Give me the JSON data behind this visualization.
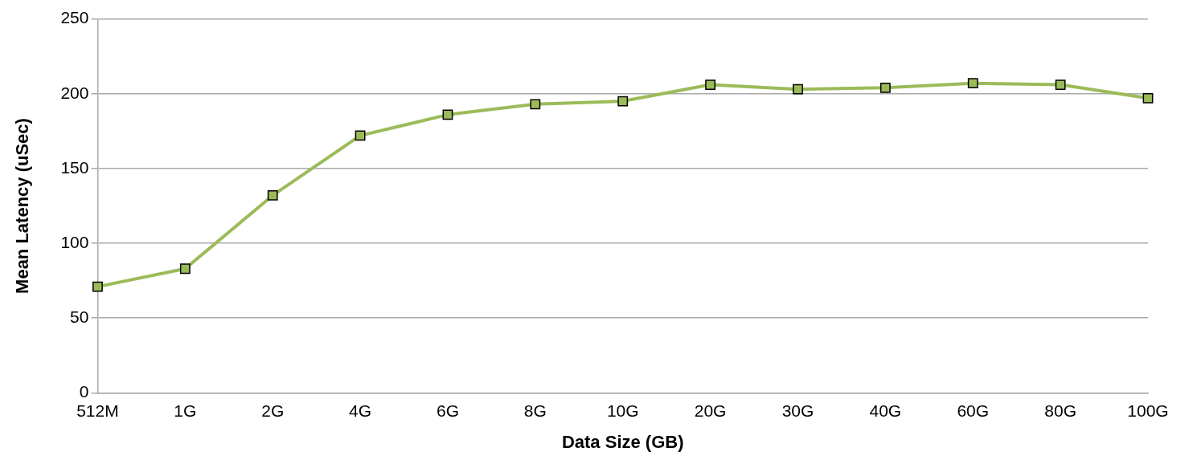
{
  "chart_data": {
    "type": "line",
    "xlabel": "Data Size (GB)",
    "ylabel": "Mean Latency (uSec)",
    "categories": [
      "512M",
      "1G",
      "2G",
      "4G",
      "6G",
      "8G",
      "10G",
      "20G",
      "30G",
      "40G",
      "60G",
      "80G",
      "100G"
    ],
    "series": [
      {
        "color": "#9bbb59",
        "values": [
          71,
          83,
          132,
          172,
          186,
          193,
          195,
          206,
          203,
          204,
          207,
          206,
          197
        ]
      }
    ],
    "ylim": [
      0,
      250
    ],
    "yticks": [
      0,
      50,
      100,
      150,
      200,
      250
    ],
    "grid": "y",
    "legend": false,
    "marker": "square",
    "line_style": "solid"
  }
}
